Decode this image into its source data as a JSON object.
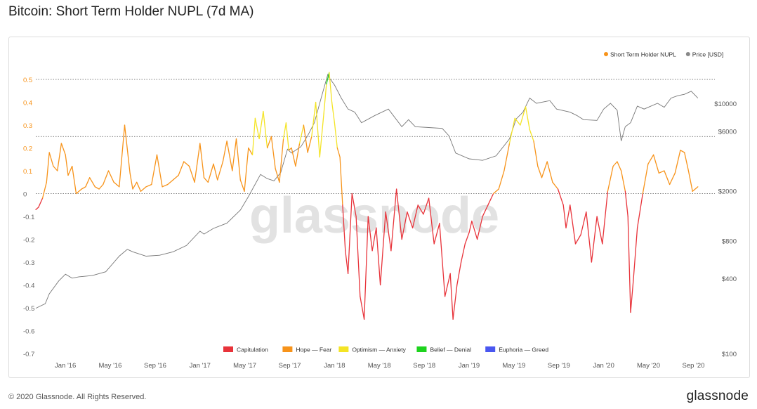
{
  "page": {
    "title": "Bitcoin: Short Term Holder NUPL (7d MA)",
    "copyright": "© 2020 Glassnode. All Rights Reserved.",
    "brand": "glassnode",
    "watermark": "glassnode"
  },
  "chart_data": {
    "type": "line",
    "title": "Bitcoin: Short Term Holder NUPL (7d MA)",
    "legend_position": "top-right",
    "legend": [
      {
        "name": "Short Term Holder NUPL",
        "color": "#f7931a"
      },
      {
        "name": "Price [USD]",
        "color": "#888888"
      }
    ],
    "zone_legend": [
      {
        "name": "Capitulation",
        "color": "#e8333a"
      },
      {
        "name": "Hope — Fear",
        "color": "#f7931a"
      },
      {
        "name": "Optimism — Anxiety",
        "color": "#f4e425"
      },
      {
        "name": "Belief — Denial",
        "color": "#1ed31e"
      },
      {
        "name": "Euphoria — Greed",
        "color": "#4a57f0"
      }
    ],
    "x_ticks": [
      {
        "label": "Jan '16",
        "t": 2016.0
      },
      {
        "label": "May '16",
        "t": 2016.333
      },
      {
        "label": "Sep '16",
        "t": 2016.667
      },
      {
        "label": "Jan '17",
        "t": 2017.0
      },
      {
        "label": "May '17",
        "t": 2017.333
      },
      {
        "label": "Sep '17",
        "t": 2017.667
      },
      {
        "label": "Jan '18",
        "t": 2018.0
      },
      {
        "label": "May '18",
        "t": 2018.333
      },
      {
        "label": "Sep '18",
        "t": 2018.667
      },
      {
        "label": "Jan '19",
        "t": 2019.0
      },
      {
        "label": "May '19",
        "t": 2019.333
      },
      {
        "label": "Sep '19",
        "t": 2019.667
      },
      {
        "label": "Jan '20",
        "t": 2020.0
      },
      {
        "label": "May '20",
        "t": 2020.333
      },
      {
        "label": "Sep '20",
        "t": 2020.667
      }
    ],
    "xlim": [
      2015.78,
      2020.8
    ],
    "y_left": {
      "ticks": [
        "0.5",
        "0.4",
        "0.3",
        "0.2",
        "0.1",
        "0",
        "-0.1",
        "-0.2",
        "-0.3",
        "-0.4",
        "-0.5",
        "-0.6",
        "-0.7"
      ],
      "lim": [
        -0.7,
        0.5
      ]
    },
    "y_right": {
      "ticks": [
        "$10000",
        "$6000",
        "$2000",
        "$800",
        "$400",
        "$100"
      ],
      "values": [
        10000,
        6000,
        2000,
        800,
        400,
        100
      ],
      "scale": "log"
    },
    "reference_lines": [
      0.5,
      0.25,
      0
    ],
    "grid": false,
    "series": [
      {
        "name": "Short Term Holder NUPL",
        "x": [
          2015.78,
          2015.8,
          2015.83,
          2015.86,
          2015.88,
          2015.91,
          2015.94,
          2015.97,
          2016.0,
          2016.02,
          2016.05,
          2016.08,
          2016.12,
          2016.15,
          2016.18,
          2016.22,
          2016.25,
          2016.28,
          2016.32,
          2016.36,
          2016.4,
          2016.44,
          2016.48,
          2016.5,
          2016.53,
          2016.56,
          2016.6,
          2016.64,
          2016.68,
          2016.72,
          2016.76,
          2016.8,
          2016.84,
          2016.88,
          2016.92,
          2016.96,
          2017.0,
          2017.03,
          2017.06,
          2017.1,
          2017.13,
          2017.17,
          2017.2,
          2017.24,
          2017.27,
          2017.3,
          2017.33,
          2017.36,
          2017.39,
          2017.41,
          2017.44,
          2017.47,
          2017.5,
          2017.53,
          2017.56,
          2017.59,
          2017.62,
          2017.64,
          2017.66,
          2017.68,
          2017.71,
          2017.74,
          2017.77,
          2017.8,
          2017.83,
          2017.86,
          2017.89,
          2017.92,
          2017.94,
          2017.96,
          2017.98,
          2018.0,
          2018.02,
          2018.04,
          2018.06,
          2018.08,
          2018.1,
          2018.13,
          2018.16,
          2018.19,
          2018.22,
          2018.25,
          2018.28,
          2018.31,
          2018.34,
          2018.38,
          2018.42,
          2018.46,
          2018.5,
          2018.54,
          2018.58,
          2018.62,
          2018.66,
          2018.7,
          2018.74,
          2018.78,
          2018.82,
          2018.86,
          2018.88,
          2018.91,
          2018.94,
          2018.97,
          2019.0,
          2019.02,
          2019.06,
          2019.1,
          2019.14,
          2019.18,
          2019.22,
          2019.26,
          2019.3,
          2019.34,
          2019.38,
          2019.42,
          2019.45,
          2019.48,
          2019.51,
          2019.54,
          2019.58,
          2019.62,
          2019.66,
          2019.7,
          2019.72,
          2019.75,
          2019.79,
          2019.83,
          2019.87,
          2019.91,
          2019.95,
          2019.99,
          2020.03,
          2020.07,
          2020.1,
          2020.13,
          2020.16,
          2020.18,
          2020.2,
          2020.22,
          2020.25,
          2020.29,
          2020.33,
          2020.37,
          2020.41,
          2020.45,
          2020.49,
          2020.53,
          2020.57,
          2020.6,
          2020.63,
          2020.66,
          2020.7
        ],
        "values": [
          -0.07,
          -0.06,
          -0.02,
          0.05,
          0.18,
          0.12,
          0.1,
          0.22,
          0.17,
          0.08,
          0.12,
          0.0,
          0.02,
          0.03,
          0.07,
          0.03,
          0.02,
          0.04,
          0.1,
          0.05,
          0.03,
          0.3,
          0.09,
          0.02,
          0.05,
          0.01,
          0.03,
          0.04,
          0.17,
          0.03,
          0.04,
          0.06,
          0.08,
          0.14,
          0.12,
          0.05,
          0.22,
          0.07,
          0.05,
          0.13,
          0.06,
          0.14,
          0.23,
          0.1,
          0.24,
          0.06,
          0.01,
          0.2,
          0.17,
          0.33,
          0.24,
          0.36,
          0.2,
          0.25,
          0.11,
          0.05,
          0.24,
          0.31,
          0.19,
          0.2,
          0.12,
          0.22,
          0.3,
          0.18,
          0.25,
          0.4,
          0.16,
          0.35,
          0.48,
          0.53,
          0.4,
          0.31,
          0.2,
          0.16,
          -0.05,
          -0.25,
          -0.35,
          0.0,
          -0.1,
          -0.45,
          -0.55,
          -0.1,
          -0.25,
          -0.15,
          -0.4,
          -0.08,
          -0.25,
          0.02,
          -0.2,
          -0.08,
          -0.15,
          -0.05,
          -0.09,
          -0.02,
          -0.22,
          -0.13,
          -0.45,
          -0.35,
          -0.55,
          -0.4,
          -0.3,
          -0.22,
          -0.17,
          -0.12,
          -0.2,
          -0.1,
          -0.05,
          0.0,
          0.02,
          0.1,
          0.22,
          0.33,
          0.3,
          0.38,
          0.28,
          0.23,
          0.12,
          0.07,
          0.14,
          0.05,
          0.02,
          -0.05,
          -0.15,
          -0.05,
          -0.22,
          -0.18,
          -0.08,
          -0.3,
          -0.1,
          -0.22,
          0.01,
          0.12,
          0.14,
          0.1,
          0.01,
          -0.1,
          -0.52,
          -0.38,
          -0.15,
          0.0,
          0.13,
          0.17,
          0.09,
          0.1,
          0.04,
          0.09,
          0.19,
          0.18,
          0.1,
          0.01,
          0.03
        ]
      },
      {
        "name": "Price [USD]",
        "x": [
          2015.78,
          2015.85,
          2015.88,
          2015.95,
          2016.0,
          2016.05,
          2016.1,
          2016.2,
          2016.3,
          2016.4,
          2016.46,
          2016.5,
          2016.6,
          2016.7,
          2016.8,
          2016.9,
          2017.0,
          2017.03,
          2017.1,
          2017.2,
          2017.3,
          2017.36,
          2017.45,
          2017.5,
          2017.55,
          2017.6,
          2017.65,
          2017.68,
          2017.75,
          2017.8,
          2017.85,
          2017.9,
          2017.95,
          2017.96,
          2018.0,
          2018.05,
          2018.1,
          2018.15,
          2018.2,
          2018.3,
          2018.4,
          2018.5,
          2018.55,
          2018.6,
          2018.7,
          2018.8,
          2018.85,
          2018.9,
          2019.0,
          2019.1,
          2019.2,
          2019.3,
          2019.35,
          2019.4,
          2019.45,
          2019.5,
          2019.6,
          2019.65,
          2019.75,
          2019.8,
          2019.85,
          2019.95,
          2020.0,
          2020.05,
          2020.1,
          2020.13,
          2020.16,
          2020.2,
          2020.25,
          2020.3,
          2020.4,
          2020.45,
          2020.5,
          2020.55,
          2020.6,
          2020.65,
          2020.7
        ],
        "values": [
          230,
          250,
          300,
          380,
          430,
          400,
          410,
          420,
          450,
          600,
          680,
          650,
          600,
          610,
          650,
          730,
          950,
          900,
          1000,
          1100,
          1400,
          1800,
          2700,
          2500,
          2400,
          2800,
          4300,
          4000,
          4500,
          5500,
          7000,
          11000,
          17000,
          16000,
          14000,
          11000,
          9000,
          8500,
          7000,
          8000,
          9000,
          6500,
          7400,
          6500,
          6400,
          6300,
          5500,
          4000,
          3600,
          3500,
          3800,
          5200,
          7500,
          8500,
          11000,
          10000,
          10500,
          9000,
          8500,
          8000,
          7400,
          7300,
          9000,
          10000,
          8800,
          5000,
          6500,
          7000,
          9500,
          9000,
          10000,
          9300,
          11000,
          11500,
          11800,
          12500,
          11000
        ]
      }
    ]
  }
}
